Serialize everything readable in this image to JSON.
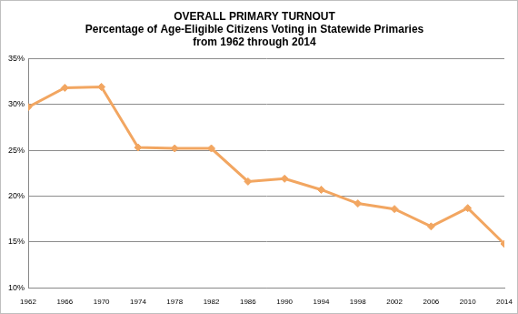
{
  "chart_data": {
    "type": "line",
    "title": [
      "OVERALL PRIMARY TURNOUT",
      "Percentage of Age-Eligible Citizens Voting in Statewide Primaries",
      "from 1962 through 2014"
    ],
    "categories": [
      "1962",
      "1966",
      "1970",
      "1974",
      "1978",
      "1982",
      "1986",
      "1990",
      "1994",
      "1998",
      "2002",
      "2006",
      "2010",
      "2014"
    ],
    "values": [
      29.7,
      31.8,
      31.9,
      25.3,
      25.2,
      25.2,
      21.6,
      21.9,
      20.7,
      19.2,
      18.6,
      16.7,
      18.7,
      14.8
    ],
    "color": "#f2a661",
    "marker": "diamond",
    "line_style": "solid",
    "ylim": [
      10,
      35
    ],
    "yticks": [
      {
        "value": 10,
        "label": "10%"
      },
      {
        "value": 15,
        "label": "15%"
      },
      {
        "value": 20,
        "label": "20%"
      },
      {
        "value": 25,
        "label": "25%"
      },
      {
        "value": 30,
        "label": "30%"
      },
      {
        "value": 35,
        "label": "35%"
      }
    ],
    "grid": true
  }
}
